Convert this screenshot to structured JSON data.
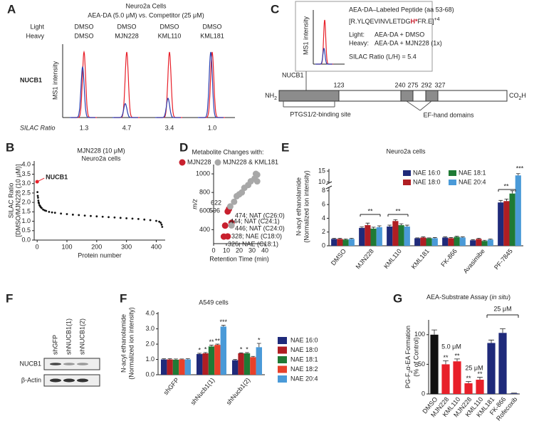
{
  "panel_a": {
    "label": "A",
    "title": "Neuro2a Cells",
    "subtitle": "AEA-DA (5.0 μM) vs. Competitor (25 μM)",
    "light_label": "Light",
    "heavy_label": "Heavy",
    "light": [
      "DMSO",
      "DMSO",
      "DMSO",
      "DMSO"
    ],
    "heavy": [
      "DMSO",
      "MJN228",
      "KML110",
      "KML181"
    ],
    "protein": "NUCB1",
    "y_label": "MS1 intensity",
    "ratio_label": "SILAC Ratio",
    "ratios": [
      1.3,
      4.7,
      3.4,
      1.0
    ],
    "ratio_labels": [
      "1.3",
      "4.7",
      "3.4",
      "1.0"
    ],
    "light_color": "#e8202a",
    "heavy_color": "#2b3fb0"
  },
  "panel_c": {
    "label": "C",
    "inset": {
      "y_label": "MS1 intensity",
      "title": "AEA-DA–Labeled Peptide (aa 53-68)",
      "sequence": [
        "[R.YLQEVINVLETDG",
        "H*",
        "FR.E]",
        "+4"
      ],
      "light_label": "Light:",
      "light_text": "AEA-DA + DMSO",
      "heavy_label": "Heavy:",
      "heavy_text": "AEA-DA + MJN228 (1x)",
      "ratio": "SILAC Ratio (L/H) = 5.4"
    },
    "protein": "NUCB1",
    "n_term": [
      "NH",
      "2"
    ],
    "c_term": [
      "CO",
      "2",
      "H"
    ],
    "positions": [
      123,
      240,
      275,
      292,
      327
    ],
    "site_label": "PTGS1/2-binding site",
    "domain_label": "EF-hand domains"
  },
  "panel_f_blot": {
    "label": "F",
    "lanes": [
      "shGFP",
      "shNUCB1(1)",
      "shNUCB1(2)"
    ],
    "rows": [
      "NUCB1",
      "β-Actin"
    ]
  },
  "chart_data": [
    {
      "panel": "B",
      "type": "scatter",
      "title": "MJN228 (10 μM)",
      "subtitle": "Neuro2a cells",
      "x_label": "Protein number",
      "y_label": [
        "SILAC Ratio",
        "[DMSO/MJN228 (10 μM)]"
      ],
      "x": [
        1,
        2,
        3,
        4,
        5,
        6,
        8,
        10,
        12,
        15,
        20,
        25,
        30,
        40,
        50,
        60,
        80,
        100,
        120,
        140,
        160,
        180,
        200,
        220,
        240,
        260,
        280,
        300,
        320,
        340,
        360,
        380,
        400,
        410,
        415,
        418,
        420
      ],
      "values": [
        2.55,
        2.35,
        2.25,
        2.1,
        2.0,
        1.95,
        1.85,
        1.8,
        1.75,
        1.7,
        1.62,
        1.58,
        1.55,
        1.5,
        1.47,
        1.45,
        1.41,
        1.38,
        1.35,
        1.33,
        1.3,
        1.28,
        1.26,
        1.24,
        1.22,
        1.2,
        1.18,
        1.16,
        1.14,
        1.12,
        1.09,
        1.06,
        1.02,
        0.98,
        0.92,
        0.82,
        0.7
      ],
      "color": "#111111",
      "xlim": [
        -10,
        430
      ],
      "xticks": [
        0,
        100,
        200,
        300,
        400
      ],
      "ylim": [
        0,
        4.2
      ],
      "yticks": [
        {
          "value": 0,
          "label": "0.0"
        },
        {
          "value": 0.5,
          "label": "0.5"
        },
        {
          "value": 1,
          "label": "1.0"
        },
        {
          "value": 1.5,
          "label": "1.5"
        },
        {
          "value": 2,
          "label": "2.0"
        },
        {
          "value": 2.5,
          "label": "2.5"
        },
        {
          "value": 3,
          "label": "3.0"
        },
        {
          "value": 3.5,
          "label": "3.5"
        },
        {
          "value": 4,
          "label": "4.0"
        }
      ],
      "annotations": [
        {
          "text": "NUCB1",
          "x": 0,
          "y": 3.1,
          "color": "#e8202a"
        }
      ]
    },
    {
      "panel": "D",
      "type": "scatter",
      "legend_title": "Metabolite Changes with:",
      "x_label": "Retention Time (min)",
      "y_label": "m/z",
      "xlim": [
        0,
        40
      ],
      "xticks": [
        0,
        10,
        20,
        30,
        40
      ],
      "ylim": [
        250,
        1100
      ],
      "yticks": [
        400,
        600,
        800,
        1000
      ],
      "series": [
        {
          "name": "MJN228",
          "color": "#c8202e",
          "x": [
            12,
            11,
            9,
            14,
            11,
            8
          ],
          "values": [
            622,
            596,
            444,
            474,
            328,
            326
          ]
        },
        {
          "name": "MJN228 & KML181",
          "color": "#a8a8a8",
          "x": [
            14,
            13,
            16,
            18,
            20,
            22,
            24,
            27,
            29,
            32,
            33,
            34,
            34
          ],
          "values": [
            446,
            650,
            700,
            760,
            780,
            800,
            850,
            880,
            920,
            950,
            1000,
            990,
            920
          ]
        }
      ],
      "annotations": [
        "622",
        "596",
        "444; NAT (C24:1)",
        "474; NAT (C26:0)",
        "446; NAT (C24:0)",
        "328; NAE (C18:0)",
        "326; NAE (C18:1)"
      ],
      "annotation_color": "#c8202e"
    },
    {
      "panel": "E",
      "type": "bar",
      "title": "Neuro2a cells",
      "y_label": [
        "N-acyl ethanolamide",
        "(Normalized ion intensity)"
      ],
      "categories": [
        "DMSO",
        "MJN228",
        "KML110",
        "KML181",
        "FK-866",
        "Avasimibe",
        "PF-7845"
      ],
      "series": [
        {
          "name": "NAE 16:0",
          "color": "#1f2a7a",
          "values": [
            1.0,
            2.6,
            2.8,
            1.1,
            1.2,
            0.8,
            6.3
          ],
          "errors": [
            0.1,
            0.15,
            0.2,
            0.05,
            0.1,
            0.1,
            0.3
          ]
        },
        {
          "name": "NAE 18:0",
          "color": "#b01e23",
          "values": [
            1.0,
            3.0,
            3.6,
            1.2,
            1.1,
            1.0,
            6.5
          ],
          "errors": [
            0.1,
            0.3,
            0.2,
            0.1,
            0.1,
            0.1,
            0.3
          ]
        },
        {
          "name": "NAE 18:1",
          "color": "#1f7a35",
          "values": [
            0.9,
            2.5,
            3.0,
            1.1,
            1.3,
            0.7,
            7.6
          ],
          "errors": [
            0.1,
            0.2,
            0.2,
            0.05,
            0.1,
            0.1,
            0.4
          ]
        },
        {
          "name": "NAE 20:4",
          "color": "#4a9ad8",
          "values": [
            1.0,
            2.7,
            2.8,
            1.1,
            1.2,
            0.9,
            13.0
          ],
          "errors": [
            0.1,
            0.2,
            0.2,
            0.1,
            0.1,
            0.1,
            0.8
          ]
        }
      ],
      "ylim": [
        0,
        16
      ],
      "y_break": [
        8.5,
        9.5
      ],
      "yticks": [
        0,
        2,
        4,
        6,
        8,
        10,
        15
      ],
      "annotations": [
        "**",
        "**",
        "**",
        "***"
      ]
    },
    {
      "panel": "F",
      "type": "bar",
      "title": "A549 cells",
      "y_label": [
        "N-acyl ethanolamide",
        "(Normalized ion intensity)"
      ],
      "categories": [
        "shGFP",
        "shNucb1(1)",
        "shNucb1(2)"
      ],
      "series": [
        {
          "name": "NAE 16:0",
          "color": "#1f2a7a",
          "values": [
            1.0,
            1.35,
            0.95
          ],
          "errors": [
            0.05,
            0.05,
            0.05
          ],
          "significance": [
            null,
            "*",
            null
          ]
        },
        {
          "name": "NAE 18:0",
          "color": "#b01e23",
          "values": [
            1.0,
            1.4,
            1.4
          ],
          "errors": [
            0.05,
            0.05,
            0.03
          ],
          "significance": [
            null,
            "*",
            "*"
          ]
        },
        {
          "name": "NAE 18:1",
          "color": "#1f7a35",
          "values": [
            0.98,
            1.85,
            1.4
          ],
          "errors": [
            0.05,
            0.08,
            0.05
          ],
          "significance": [
            null,
            "**",
            "*"
          ]
        },
        {
          "name": "NAE 18:2",
          "color": "#e8402a",
          "values": [
            1.0,
            1.95,
            1.15
          ],
          "errors": [
            0.03,
            0.05,
            0.05
          ],
          "significance": [
            null,
            "**",
            null
          ]
        },
        {
          "name": "NAE 20:4",
          "color": "#4a9ad8",
          "values": [
            1.0,
            3.15,
            1.8
          ],
          "errors": [
            0.05,
            0.08,
            0.25
          ],
          "significance": [
            null,
            "***",
            "*"
          ]
        }
      ],
      "ylim": [
        0,
        4.1
      ],
      "yticks": [
        {
          "value": 0,
          "label": "0.0"
        },
        {
          "value": 1,
          "label": "1.0"
        },
        {
          "value": 2,
          "label": "2.0"
        },
        {
          "value": 3,
          "label": "3.0"
        },
        {
          "value": 4,
          "label": "4.0"
        }
      ]
    },
    {
      "panel": "G",
      "type": "bar",
      "title": [
        "AEA-Substrate Assay (",
        "in situ",
        ")"
      ],
      "y_label": [
        "PG-F",
        "2",
        "α-EA Formation"
      ],
      "y_sublabel": "(% of Control)",
      "categories": [
        "DMSO",
        "MJN228",
        "KML110",
        "MJN228",
        "KML110",
        "KML181",
        "FK-866",
        "Rofecoxib"
      ],
      "values": [
        100,
        50,
        55,
        18,
        24,
        86,
        103,
        1
      ],
      "errors": [
        8,
        6,
        4,
        3,
        4,
        5,
        7,
        0.5
      ],
      "colors": [
        "#111111",
        "#e8202a",
        "#e8202a",
        "#e8202a",
        "#e8202a",
        "#1f2a7a",
        "#1f2a7a",
        "#1f2a7a"
      ],
      "significance": [
        null,
        "**",
        "**",
        "**",
        "**",
        null,
        null,
        null
      ],
      "ylim": [
        0,
        125
      ],
      "yticks": [
        0,
        50,
        100
      ],
      "annotations": [
        "5.0 μM",
        "25 μM",
        "25 μM"
      ]
    }
  ]
}
